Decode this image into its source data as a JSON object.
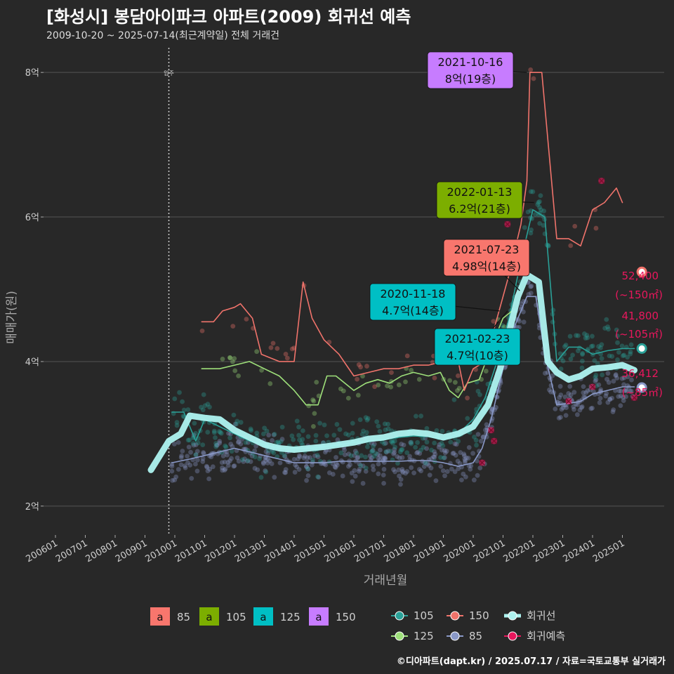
{
  "title": "[화성시] 봉담아이파크 아파트(2009) 회귀선 예측",
  "subtitle": "2009-10-20 ~ 2025-07-14(최근계약일) 전체 거래건",
  "caption": "©디아파트(dapt.kr) / 2025.07.17 / 자료=국토교통부 실거래가",
  "colors": {
    "bg": "#282828",
    "grid": "#555555",
    "s85": "#8a99c8",
    "s105": "#2aa198",
    "s125": "#9ee07a",
    "s150": "#f0736b",
    "regression": "#aef3f0",
    "prediction": "#e8175d",
    "box85": "#f8766d",
    "box105": "#7cae00",
    "box125": "#00bfc4",
    "box150": "#c77cff"
  },
  "chart_data": {
    "type": "line",
    "title": "[화성시] 봉담아이파크 아파트(2009) 회귀선 예측",
    "xlabel": "거래년월",
    "ylabel": "매매가(원)",
    "xlim": [
      2005.6,
      2026.4
    ],
    "ylim": [
      1.6,
      8.4
    ],
    "x_ticks": [
      "200601",
      "200701",
      "200801",
      "200901",
      "201001",
      "201101",
      "201201",
      "201301",
      "201401",
      "201501",
      "201601",
      "201701",
      "201801",
      "201901",
      "202001",
      "202101",
      "202201",
      "202301",
      "202401",
      "202501"
    ],
    "x_tick_values": [
      2006,
      2007,
      2008,
      2009,
      2010,
      2011,
      2012,
      2013,
      2014,
      2015,
      2016,
      2017,
      2018,
      2019,
      2020,
      2021,
      2022,
      2023,
      2024,
      2025
    ],
    "y_ticks": [
      "2억",
      "4억",
      "6억",
      "8억"
    ],
    "y_tick_values": [
      2,
      4,
      6,
      8
    ],
    "vline": {
      "x": 2009.8,
      "label": "입주"
    },
    "series": [
      {
        "name": "85",
        "key": "s85",
        "points": [
          [
            2009.9,
            2.6
          ],
          [
            2010.5,
            2.65
          ],
          [
            2011.0,
            2.7
          ],
          [
            2011.5,
            2.75
          ],
          [
            2012.0,
            2.8
          ],
          [
            2012.5,
            2.75
          ],
          [
            2013.0,
            2.7
          ],
          [
            2013.5,
            2.65
          ],
          [
            2014.0,
            2.6
          ],
          [
            2014.5,
            2.6
          ],
          [
            2015.0,
            2.6
          ],
          [
            2015.5,
            2.62
          ],
          [
            2016.0,
            2.62
          ],
          [
            2016.5,
            2.62
          ],
          [
            2017.0,
            2.62
          ],
          [
            2017.5,
            2.62
          ],
          [
            2018.0,
            2.63
          ],
          [
            2018.5,
            2.63
          ],
          [
            2019.0,
            2.6
          ],
          [
            2019.5,
            2.55
          ],
          [
            2020.0,
            2.6
          ],
          [
            2020.3,
            2.8
          ],
          [
            2020.6,
            3.2
          ],
          [
            2021.0,
            3.9
          ],
          [
            2021.4,
            4.5
          ],
          [
            2021.8,
            4.9
          ],
          [
            2022.1,
            4.9
          ],
          [
            2022.4,
            4.1
          ],
          [
            2022.8,
            3.4
          ],
          [
            2023.2,
            3.42
          ],
          [
            2023.6,
            3.45
          ],
          [
            2024.0,
            3.55
          ],
          [
            2024.5,
            3.6
          ],
          [
            2025.0,
            3.65
          ],
          [
            2025.4,
            3.65
          ]
        ]
      },
      {
        "name": "105",
        "key": "s105",
        "points": [
          [
            2009.9,
            3.3
          ],
          [
            2010.3,
            3.3
          ],
          [
            2010.7,
            2.9
          ],
          [
            2011.0,
            3.2
          ],
          [
            2011.5,
            3.1
          ],
          [
            2012.0,
            3.0
          ],
          [
            2012.5,
            2.9
          ],
          [
            2013.0,
            2.85
          ],
          [
            2013.5,
            2.8
          ],
          [
            2014.0,
            2.8
          ],
          [
            2014.5,
            2.8
          ],
          [
            2015.0,
            2.82
          ],
          [
            2015.5,
            2.85
          ],
          [
            2016.0,
            2.88
          ],
          [
            2016.5,
            2.9
          ],
          [
            2017.0,
            2.92
          ],
          [
            2017.5,
            2.95
          ],
          [
            2018.0,
            2.97
          ],
          [
            2018.5,
            2.96
          ],
          [
            2019.0,
            2.92
          ],
          [
            2019.5,
            3.0
          ],
          [
            2020.0,
            3.2
          ],
          [
            2020.4,
            3.5
          ],
          [
            2020.8,
            4.0
          ],
          [
            2021.2,
            4.6
          ],
          [
            2021.6,
            5.4
          ],
          [
            2022.0,
            6.1
          ],
          [
            2022.4,
            6.0
          ],
          [
            2022.8,
            4.0
          ],
          [
            2023.2,
            4.2
          ],
          [
            2023.6,
            4.2
          ],
          [
            2024.0,
            4.1
          ],
          [
            2024.5,
            4.15
          ],
          [
            2025.0,
            4.18
          ],
          [
            2025.4,
            4.18
          ]
        ]
      },
      {
        "name": "125",
        "key": "s125",
        "points": [
          [
            2010.9,
            3.9
          ],
          [
            2011.5,
            3.9
          ],
          [
            2012.0,
            3.95
          ],
          [
            2012.5,
            4.0
          ],
          [
            2013.0,
            3.9
          ],
          [
            2013.5,
            3.8
          ],
          [
            2014.0,
            3.6
          ],
          [
            2014.4,
            3.4
          ],
          [
            2014.8,
            3.4
          ],
          [
            2015.1,
            3.8
          ],
          [
            2015.4,
            3.8
          ],
          [
            2016.0,
            3.6
          ],
          [
            2016.4,
            3.7
          ],
          [
            2016.8,
            3.75
          ],
          [
            2017.2,
            3.7
          ],
          [
            2017.6,
            3.8
          ],
          [
            2018.0,
            3.85
          ],
          [
            2018.5,
            3.8
          ],
          [
            2018.9,
            3.85
          ],
          [
            2019.2,
            3.6
          ],
          [
            2019.5,
            3.5
          ],
          [
            2019.8,
            3.7
          ],
          [
            2020.2,
            3.75
          ],
          [
            2020.6,
            4.2
          ],
          [
            2021.0,
            4.6
          ],
          [
            2021.3,
            4.7
          ]
        ]
      },
      {
        "name": "150",
        "key": "s150",
        "points": [
          [
            2010.9,
            4.55
          ],
          [
            2011.3,
            4.55
          ],
          [
            2011.6,
            4.7
          ],
          [
            2012.0,
            4.75
          ],
          [
            2012.2,
            4.8
          ],
          [
            2012.6,
            4.6
          ],
          [
            2012.9,
            4.1
          ],
          [
            2013.5,
            4.0
          ],
          [
            2014.0,
            4.0
          ],
          [
            2014.3,
            5.1
          ],
          [
            2014.6,
            4.6
          ],
          [
            2015.0,
            4.3
          ],
          [
            2015.5,
            4.1
          ],
          [
            2016.0,
            3.8
          ],
          [
            2016.5,
            3.85
          ],
          [
            2017.0,
            3.9
          ],
          [
            2017.5,
            3.9
          ],
          [
            2018.0,
            3.95
          ],
          [
            2018.5,
            3.95
          ],
          [
            2019.0,
            4.0
          ],
          [
            2019.4,
            4.2
          ],
          [
            2019.7,
            3.6
          ],
          [
            2020.0,
            3.9
          ],
          [
            2020.4,
            4.0
          ],
          [
            2020.8,
            4.6
          ],
          [
            2021.2,
            5.2
          ],
          [
            2021.6,
            5.9
          ],
          [
            2021.8,
            6.5
          ],
          [
            2021.9,
            8.0
          ],
          [
            2022.3,
            8.0
          ],
          [
            2022.8,
            5.7
          ],
          [
            2023.2,
            5.7
          ],
          [
            2023.6,
            5.6
          ],
          [
            2024.0,
            6.1
          ],
          [
            2024.4,
            6.2
          ],
          [
            2024.8,
            6.4
          ],
          [
            2025.0,
            6.2
          ]
        ]
      },
      {
        "name": "회귀선",
        "key": "regression",
        "points": [
          [
            2009.2,
            2.5
          ],
          [
            2009.5,
            2.7
          ],
          [
            2009.8,
            2.9
          ],
          [
            2010.2,
            3.0
          ],
          [
            2010.5,
            3.25
          ],
          [
            2011.0,
            3.22
          ],
          [
            2011.5,
            3.2
          ],
          [
            2012.0,
            3.05
          ],
          [
            2012.5,
            2.95
          ],
          [
            2013.0,
            2.85
          ],
          [
            2013.5,
            2.8
          ],
          [
            2014.0,
            2.78
          ],
          [
            2014.5,
            2.8
          ],
          [
            2015.0,
            2.82
          ],
          [
            2015.5,
            2.85
          ],
          [
            2016.0,
            2.88
          ],
          [
            2016.5,
            2.93
          ],
          [
            2017.0,
            2.95
          ],
          [
            2017.5,
            3.0
          ],
          [
            2018.0,
            3.02
          ],
          [
            2018.5,
            3.0
          ],
          [
            2019.0,
            2.95
          ],
          [
            2019.5,
            3.0
          ],
          [
            2020.0,
            3.1
          ],
          [
            2020.5,
            3.4
          ],
          [
            2020.9,
            3.9
          ],
          [
            2021.2,
            4.4
          ],
          [
            2021.5,
            4.9
          ],
          [
            2021.8,
            5.2
          ],
          [
            2022.2,
            5.1
          ],
          [
            2022.5,
            4.0
          ],
          [
            2022.8,
            3.85
          ],
          [
            2023.2,
            3.75
          ],
          [
            2023.6,
            3.8
          ],
          [
            2024.0,
            3.9
          ],
          [
            2024.5,
            3.92
          ],
          [
            2025.0,
            3.95
          ],
          [
            2025.4,
            3.88
          ]
        ]
      }
    ],
    "annotations": [
      {
        "date": "2021-10-16",
        "label": "8억(19층)",
        "color_key": "box150",
        "x": 2021.8,
        "y": 8.0
      },
      {
        "date": "2022-01-13",
        "label": "6.2억(21층)",
        "color_key": "box105",
        "x": 2022.04,
        "y": 6.2
      },
      {
        "date": "2021-07-23",
        "label": "4.98억(14층)",
        "color_key": "box85",
        "x": 2021.56,
        "y": 4.98
      },
      {
        "date": "2020-11-18",
        "label": "4.7억(14층)",
        "color_key": "box125",
        "x": 2020.88,
        "y": 4.7
      },
      {
        "date": "2021-02-23",
        "label": "4.7억(10층)",
        "color_key": "box125",
        "x": 2021.15,
        "y": 4.7
      }
    ],
    "predictions": [
      {
        "value": "52,400",
        "area": "(~150㎡)",
        "y": 5.24,
        "key": "s150"
      },
      {
        "value": "41,800",
        "area": "(~105㎡)",
        "y": 4.18,
        "key": "s105"
      },
      {
        "value": "36,412",
        "area": "(~85㎡)",
        "y": 3.64,
        "key": "s85"
      }
    ],
    "legend_boxes": [
      {
        "glyph": "a",
        "label": "85",
        "color_key": "box85"
      },
      {
        "glyph": "a",
        "label": "105",
        "color_key": "box105"
      },
      {
        "glyph": "a",
        "label": "125",
        "color_key": "box125"
      },
      {
        "glyph": "a",
        "label": "150",
        "color_key": "box150"
      }
    ],
    "legend_lines": [
      {
        "label": "105",
        "color_key": "s105"
      },
      {
        "label": "150",
        "color_key": "s150"
      },
      {
        "label": "회귀선",
        "color_key": "regression"
      },
      {
        "label": "125",
        "color_key": "s125"
      },
      {
        "label": "85",
        "color_key": "s85"
      },
      {
        "label": "회귀예측",
        "color_key": "prediction"
      }
    ]
  }
}
